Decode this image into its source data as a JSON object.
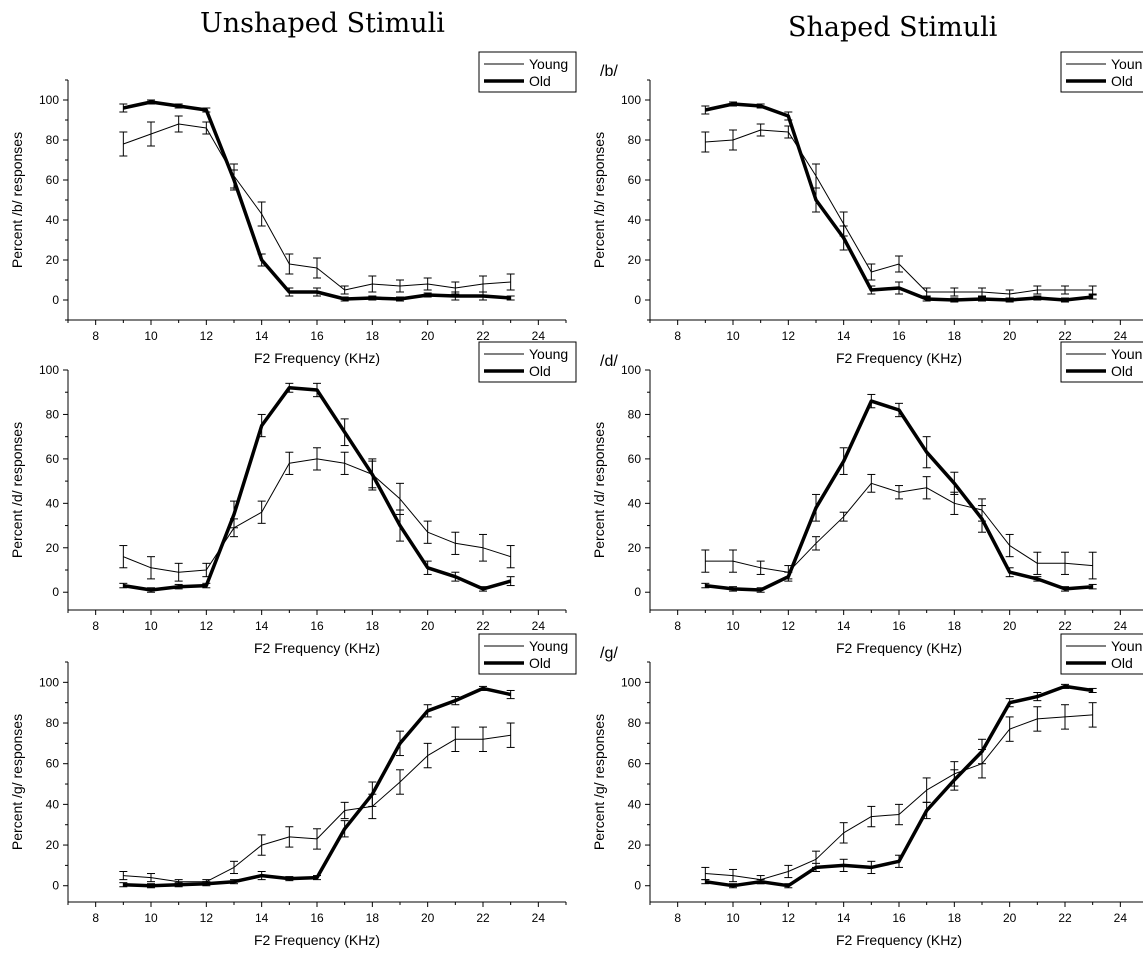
{
  "columns": [
    {
      "title": "Unshaped Stimuli"
    },
    {
      "title": "Shaped Stimuli"
    }
  ],
  "legend": {
    "young": "Young",
    "old": "Old"
  },
  "chart_data": [
    {
      "type": "line",
      "column": 0,
      "row": 0,
      "panel_label": "",
      "xlabel": "F2 Frequency (KHz)",
      "ylabel": "Percent /b/ responses",
      "xlim": [
        7,
        25
      ],
      "ylim": [
        -10,
        110
      ],
      "xticks": [
        8,
        10,
        12,
        14,
        16,
        18,
        20,
        22,
        24
      ],
      "yticks": [
        0,
        20,
        40,
        60,
        80,
        100
      ],
      "x": [
        9,
        10,
        11,
        12,
        13,
        14,
        15,
        16,
        17,
        18,
        19,
        20,
        21,
        22,
        23
      ],
      "series": [
        {
          "name": "Young",
          "values": [
            78,
            83,
            88,
            86,
            62,
            43,
            18,
            16,
            5,
            8,
            7,
            8,
            6,
            8,
            9
          ],
          "errors": [
            6,
            6,
            4,
            3,
            6,
            6,
            5,
            5,
            2,
            4,
            3,
            3,
            3,
            4,
            4
          ]
        },
        {
          "name": "Old",
          "values": [
            96,
            99,
            97,
            95,
            60,
            20,
            4,
            4,
            0.5,
            1,
            0.5,
            2.5,
            2,
            2,
            1
          ],
          "errors": [
            2,
            1,
            1,
            1,
            5,
            3,
            2,
            2,
            1,
            1,
            1,
            1,
            2,
            2,
            1
          ]
        }
      ]
    },
    {
      "type": "line",
      "column": 0,
      "row": 1,
      "panel_label": "",
      "xlabel": "F2 Frequency (KHz)",
      "ylabel": "Percent /d/ responses",
      "xlim": [
        7,
        25
      ],
      "ylim": [
        -8,
        100
      ],
      "xticks": [
        8,
        10,
        12,
        14,
        16,
        18,
        20,
        22,
        24
      ],
      "yticks": [
        0,
        20,
        40,
        60,
        80,
        100
      ],
      "x": [
        9,
        10,
        11,
        12,
        13,
        14,
        15,
        16,
        17,
        18,
        19,
        20,
        21,
        22,
        23
      ],
      "series": [
        {
          "name": "Young",
          "values": [
            16,
            11,
            9,
            10,
            29,
            36,
            58,
            60,
            58,
            53,
            42,
            27,
            22,
            20,
            16
          ],
          "errors": [
            5,
            5,
            4,
            3,
            4,
            5,
            5,
            5,
            5,
            6,
            7,
            5,
            5,
            6,
            5
          ]
        },
        {
          "name": "Old",
          "values": [
            3,
            1,
            2.5,
            3,
            35,
            75,
            92,
            91,
            72,
            53,
            30,
            11,
            7,
            1.5,
            5
          ],
          "errors": [
            1,
            1,
            1,
            1,
            6,
            5,
            2,
            3,
            6,
            7,
            7,
            3,
            2,
            1,
            2
          ]
        }
      ]
    },
    {
      "type": "line",
      "column": 0,
      "row": 2,
      "panel_label": "",
      "xlabel": "F2 Frequency (KHz)",
      "ylabel": "Percent /g/ responses",
      "xlim": [
        7,
        25
      ],
      "ylim": [
        -8,
        110
      ],
      "xticks": [
        8,
        10,
        12,
        14,
        16,
        18,
        20,
        22,
        24
      ],
      "yticks": [
        0,
        20,
        40,
        60,
        80,
        100
      ],
      "x": [
        9,
        10,
        11,
        12,
        13,
        14,
        15,
        16,
        17,
        18,
        19,
        20,
        21,
        22,
        23
      ],
      "series": [
        {
          "name": "Young",
          "values": [
            5,
            4,
            2,
            2,
            9,
            20,
            24,
            23,
            37,
            39,
            51,
            64,
            72,
            72,
            74
          ],
          "errors": [
            2,
            2,
            1,
            1,
            3,
            5,
            5,
            5,
            4,
            6,
            6,
            6,
            6,
            6,
            6
          ]
        },
        {
          "name": "Old",
          "values": [
            0.5,
            0,
            0.5,
            1,
            2,
            5,
            3.5,
            4,
            28,
            45,
            70,
            86,
            91,
            97,
            94
          ],
          "errors": [
            1,
            1,
            1,
            1,
            1,
            2,
            1,
            1,
            4,
            6,
            6,
            3,
            2,
            1,
            2
          ]
        }
      ]
    },
    {
      "type": "line",
      "column": 1,
      "row": 0,
      "panel_label": "/b/",
      "xlabel": "F2 Frequency (KHz)",
      "ylabel": "Percent /b/ responses",
      "xlim": [
        7,
        25
      ],
      "ylim": [
        -10,
        110
      ],
      "xticks": [
        8,
        10,
        12,
        14,
        16,
        18,
        20,
        22,
        24
      ],
      "yticks": [
        0,
        20,
        40,
        60,
        80,
        100
      ],
      "x": [
        9,
        10,
        11,
        12,
        13,
        14,
        15,
        16,
        17,
        18,
        19,
        20,
        21,
        22,
        23
      ],
      "series": [
        {
          "name": "Young",
          "values": [
            79,
            80,
            85,
            84,
            62,
            38,
            14,
            18,
            4,
            4,
            4,
            3,
            5,
            5,
            5
          ],
          "errors": [
            5,
            5,
            3,
            3,
            6,
            6,
            4,
            4,
            2,
            2,
            2,
            2,
            2,
            2,
            2
          ]
        },
        {
          "name": "Old",
          "values": [
            95,
            98,
            97,
            92,
            50,
            31,
            5,
            6,
            0.5,
            0,
            0.5,
            0,
            1,
            0,
            1.5
          ],
          "errors": [
            2,
            1,
            1,
            2,
            6,
            6,
            2,
            3,
            1,
            1,
            1,
            1,
            1,
            1,
            1
          ]
        }
      ]
    },
    {
      "type": "line",
      "column": 1,
      "row": 1,
      "panel_label": "/d/",
      "xlabel": "F2 Frequency (KHz)",
      "ylabel": "Percent /d/ responses",
      "xlim": [
        7,
        25
      ],
      "ylim": [
        -8,
        100
      ],
      "xticks": [
        8,
        10,
        12,
        14,
        16,
        18,
        20,
        22,
        24
      ],
      "yticks": [
        0,
        20,
        40,
        60,
        80,
        100
      ],
      "x": [
        9,
        10,
        11,
        12,
        13,
        14,
        15,
        16,
        17,
        18,
        19,
        20,
        21,
        22,
        23
      ],
      "series": [
        {
          "name": "Young",
          "values": [
            14,
            14,
            11,
            9,
            22,
            34,
            49,
            45,
            47,
            40,
            37,
            21,
            13,
            13,
            12
          ],
          "errors": [
            5,
            5,
            3,
            3,
            3,
            2,
            4,
            3,
            5,
            5,
            5,
            5,
            5,
            5,
            6
          ]
        },
        {
          "name": "Old",
          "values": [
            3,
            1.5,
            1,
            7,
            38,
            59,
            86,
            82,
            63,
            49,
            33,
            9,
            6,
            1.5,
            2.5
          ],
          "errors": [
            1,
            1,
            1,
            2,
            6,
            6,
            3,
            3,
            7,
            5,
            6,
            2,
            1,
            1,
            1
          ]
        }
      ]
    },
    {
      "type": "line",
      "column": 1,
      "row": 2,
      "panel_label": "/g/",
      "xlabel": "F2 Frequency (KHz)",
      "ylabel": "Percent /g/ responses",
      "xlim": [
        7,
        25
      ],
      "ylim": [
        -8,
        110
      ],
      "xticks": [
        8,
        10,
        12,
        14,
        16,
        18,
        20,
        22,
        24
      ],
      "yticks": [
        0,
        20,
        40,
        60,
        80,
        100
      ],
      "x": [
        9,
        10,
        11,
        12,
        13,
        14,
        15,
        16,
        17,
        18,
        19,
        20,
        21,
        22,
        23
      ],
      "series": [
        {
          "name": "Young",
          "values": [
            6,
            5,
            3,
            7,
            13,
            26,
            34,
            35,
            47,
            55,
            60,
            77,
            82,
            83,
            84
          ],
          "errors": [
            3,
            3,
            2,
            3,
            4,
            5,
            5,
            5,
            6,
            6,
            7,
            6,
            6,
            6,
            6
          ]
        },
        {
          "name": "Old",
          "values": [
            2,
            0,
            2,
            0,
            9,
            10,
            9,
            12,
            37,
            52,
            66,
            90,
            93,
            98,
            96
          ],
          "errors": [
            1,
            1,
            1,
            1,
            2,
            3,
            3,
            3,
            4,
            5,
            6,
            2,
            2,
            1,
            1
          ]
        }
      ]
    }
  ]
}
